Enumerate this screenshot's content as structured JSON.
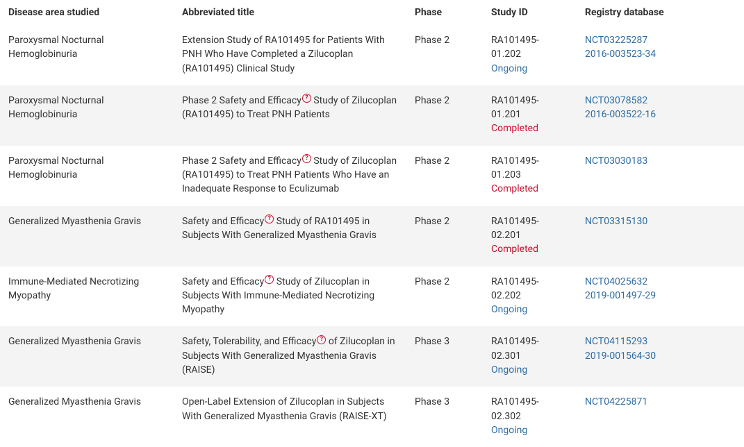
{
  "columns": [
    "Disease area studied",
    "Abbreviated title",
    "Phase",
    "Study ID",
    "Registry database"
  ],
  "info_glyph": "?",
  "status_colors": {
    "Ongoing": "#2e6da4",
    "Completed": "#c8102e"
  },
  "link_color": "#2e6da4",
  "alt_row_bg": "#f4f4f4",
  "rows": [
    {
      "disease": "Paroxysmal Nocturnal Hemoglobinuria",
      "title_pre": "Extension Study of RA101495 for Patients With PNH Who Have Completed a Zilucoplan (RA101495) Clinical Study",
      "title_post": "",
      "has_info": false,
      "phase": "Phase 2",
      "study_id": "RA101495-01.202",
      "status": "Ongoing",
      "registry": [
        "NCT03225287",
        "2016-003523-34"
      ]
    },
    {
      "disease": "Paroxysmal Nocturnal Hemoglobinuria",
      "title_pre": "Phase 2 Safety and Efficacy",
      "title_post": " Study of Zilucoplan (RA101495) to Treat PNH Patients",
      "has_info": true,
      "phase": "Phase 2",
      "study_id": "RA101495-01.201",
      "status": "Completed",
      "registry": [
        "NCT03078582",
        "2016-003522-16"
      ]
    },
    {
      "disease": "Paroxysmal Nocturnal Hemoglobinuria",
      "title_pre": "Phase 2 Safety and Efficacy",
      "title_post": " Study of Zilucoplan (RA101495) to Treat PNH Patients Who Have an Inadequate Response to Eculizumab",
      "has_info": true,
      "phase": "Phase 2",
      "study_id": "RA101495-01.203",
      "status": "Completed",
      "registry": [
        "NCT03030183"
      ]
    },
    {
      "disease": "Generalized Myasthenia Gravis",
      "title_pre": "Safety and Efficacy",
      "title_post": " Study of RA101495 in Subjects With Generalized Myasthenia Gravis",
      "has_info": true,
      "phase": "Phase 2",
      "study_id": "RA101495-02.201",
      "status": "Completed",
      "registry": [
        "NCT03315130"
      ]
    },
    {
      "disease": "Immune-Mediated Necrotizing Myopathy",
      "title_pre": "Safety and Efficacy",
      "title_post": " Study of Zilucoplan in Subjects With Immune-Mediated Necrotizing Myopathy",
      "has_info": true,
      "phase": "Phase 2",
      "study_id": "RA101495-02.202",
      "status": "Ongoing",
      "registry": [
        "NCT04025632",
        "2019-001497-29"
      ]
    },
    {
      "disease": "Generalized Myasthenia Gravis",
      "title_pre": "Safety, Tolerability, and Efficacy",
      "title_post": " of Zilucoplan in Subjects With Generalized Myasthenia Gravis (RAISE)",
      "has_info": true,
      "phase": "Phase 3",
      "study_id": "RA101495-02.301",
      "status": "Ongoing",
      "registry": [
        "NCT04115293",
        "2019-001564-30"
      ]
    },
    {
      "disease": "Generalized Myasthenia Gravis",
      "title_pre": "Open-Label Extension of Zilucoplan in Subjects With Generalized Myasthenia Gravis (RAISE-XT)",
      "title_post": "",
      "has_info": false,
      "phase": "Phase 3",
      "study_id": " RA101495-02.302",
      "status": "Ongoing",
      "registry": [
        "NCT04225871"
      ]
    }
  ]
}
